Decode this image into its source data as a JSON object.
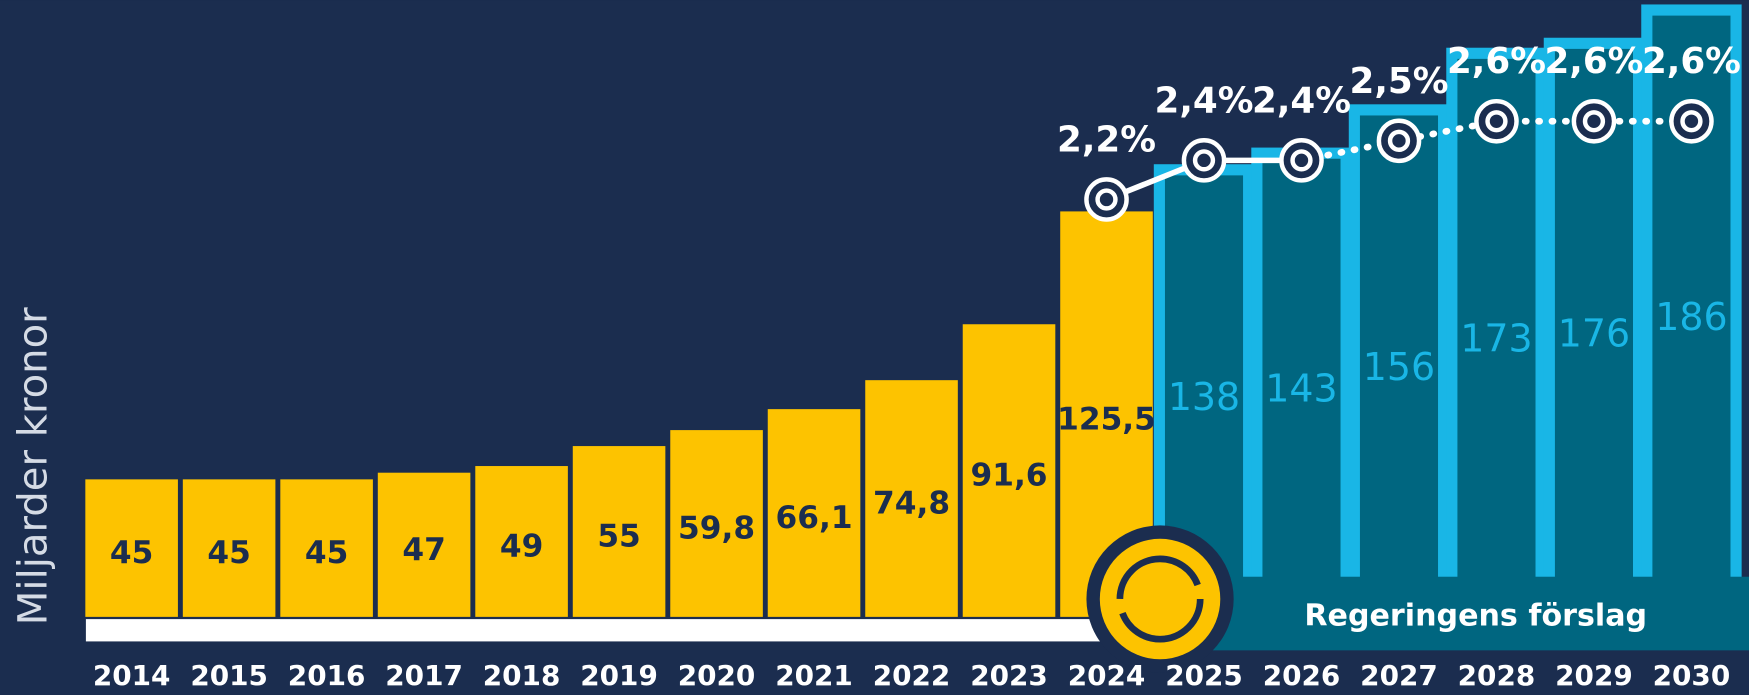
{
  "chart_data": {
    "type": "bar",
    "y_axis_label": "Miljarder kronor",
    "annotation": "Regeringens förslag",
    "categories": [
      "2014",
      "2015",
      "2016",
      "2017",
      "2018",
      "2019",
      "2020",
      "2021",
      "2022",
      "2023",
      "2024",
      "2025",
      "2026",
      "2027",
      "2028",
      "2029",
      "2030"
    ],
    "ylim": [
      0,
      189
    ],
    "y2lim": [
      -0.3,
      3.22
    ],
    "line_dashed_from": "2026",
    "series": [
      {
        "type": "bar",
        "color": "#fdc300",
        "label_color": "#1b2d4f",
        "values": [
          45,
          45,
          45,
          47,
          49,
          55,
          59.8,
          66.1,
          74.8,
          91.6,
          125.5,
          null,
          null,
          null,
          null,
          null,
          null
        ],
        "value_labels": [
          "45",
          "45",
          "45",
          "47",
          "49",
          "55",
          "59,8",
          "66,1",
          "74,8",
          "91,6",
          "125,5",
          null,
          null,
          null,
          null,
          null,
          null
        ]
      },
      {
        "type": "bar",
        "color": "#006680",
        "stroke": "#19b6e6",
        "label_color": "#19b6e6",
        "values": [
          null,
          null,
          null,
          null,
          null,
          null,
          null,
          null,
          null,
          null,
          null,
          138,
          143,
          156,
          173,
          176,
          186
        ],
        "value_labels": [
          null,
          null,
          null,
          null,
          null,
          null,
          null,
          null,
          null,
          null,
          null,
          "138",
          "143",
          "156",
          "173",
          "176",
          "186"
        ]
      },
      {
        "type": "line",
        "axis": "y2",
        "color": "#ffffff",
        "values": [
          null,
          null,
          null,
          null,
          null,
          null,
          null,
          null,
          null,
          null,
          2.2,
          2.4,
          2.4,
          2.5,
          2.6,
          2.6,
          2.6
        ],
        "value_labels": [
          null,
          null,
          null,
          null,
          null,
          null,
          null,
          null,
          null,
          null,
          "2,2%",
          "2,4%",
          "2,4%",
          "2,5%",
          "2,6%",
          "2,6%",
          "2,6%"
        ]
      }
    ]
  }
}
